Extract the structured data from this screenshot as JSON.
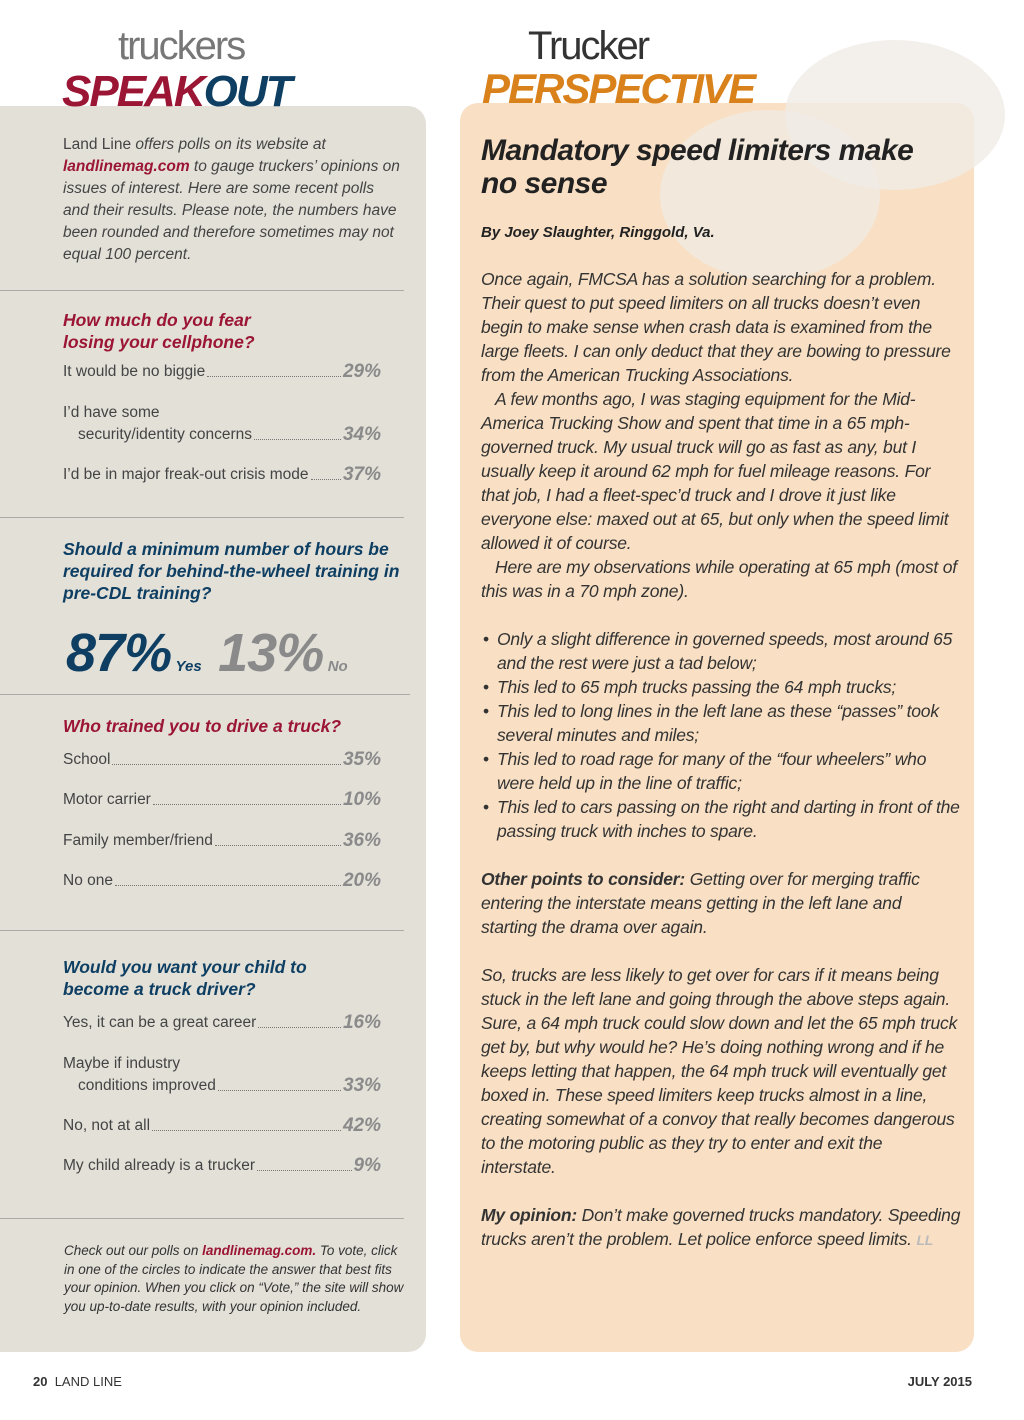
{
  "left": {
    "logo_small": "truckers",
    "logo_big_a": "SPEAK",
    "logo_big_b": "OUT",
    "intro_lead": "Land Line",
    "intro_a": " offers polls on its website at ",
    "intro_link": "landlinemag.com",
    "intro_b": " to gauge truckers’ opinions on issues of interest. Here are some recent polls and their results. Please note, the numbers have been rounded and therefore sometimes may not equal 100 percent.",
    "poll1": {
      "question": "How much do you fear losing your cellphone?",
      "answers": [
        {
          "label": "It would be no biggie",
          "pct": "29%"
        },
        {
          "label": "I’d have some",
          "label2": "security/identity concerns",
          "pct": "34%"
        },
        {
          "label": "I’d be in major freak-out crisis mode",
          "pct": "37%"
        }
      ]
    },
    "poll2": {
      "question": "Should a minimum number of hours be required for behind-the-wheel training in pre-CDL training?",
      "yes_pct": "87%",
      "yes": "Yes",
      "no_pct": "13%",
      "no": "No"
    },
    "poll3": {
      "question": "Who trained you to drive a truck?",
      "answers": [
        {
          "label": "School",
          "pct": "35%"
        },
        {
          "label": "Motor carrier",
          "pct": "10%"
        },
        {
          "label": "Family member/friend",
          "pct": "36%"
        },
        {
          "label": "No one",
          "pct": "20%"
        }
      ]
    },
    "poll4": {
      "question": "Would you want your child to become a truck driver?",
      "answers": [
        {
          "label": "Yes, it can be a great career",
          "pct": "16%"
        },
        {
          "label": "Maybe if industry",
          "label2": "conditions improved",
          "pct": "33%"
        },
        {
          "label": "No, not at all",
          "pct": "42%"
        },
        {
          "label": "My child already is a trucker",
          "pct": "9%"
        }
      ]
    },
    "outro_a": "Check out our polls on ",
    "outro_link": "landlinemag.com.",
    "outro_b": " To vote, click in one of the circles to indicate the answer that best fits your opinion. When you click on “Vote,” the site will show you up-to-date results, with your opinion included."
  },
  "right": {
    "logo_small": "Trucker",
    "logo_big": "PERSPECTIVE",
    "headline": "Mandatory speed limiters make no sense",
    "byline": "By Joey Slaughter, Ringgold, Va.",
    "p1": "Once again, FMCSA has a solution searching for a problem. Their quest to put speed limiters on all trucks doesn’t even begin to make sense when crash data is examined from the large fleets. I can only deduct that they are bowing to pressure from the American Trucking Associations.",
    "p2": "A few months ago, I was staging equipment for the Mid-America Trucking Show and spent that time in a 65 mph-governed truck. My usual truck will go as fast as any, but I usually keep it around 62 mph for fuel mileage reasons. For that job, I had a fleet-spec’d truck and I drove it just like everyone else: maxed out at 65, but only when the speed limit allowed it of course.",
    "p3": "Here are my observations while operating at 65 mph (most of this was in a 70 mph zone).",
    "bullets": [
      "Only a slight difference in governed speeds, most around 65 and the rest were just a tad below;",
      "This led to 65 mph trucks passing the 64 mph trucks;",
      "This led to long lines in the left lane as these “passes” took several minutes and miles;",
      "This led to road rage for many of the “four wheelers” who were held up in the line of traffic;",
      "This led to cars passing on the right and darting in front of the passing truck with inches to spare."
    ],
    "p4_lead": "Other points to consider:",
    "p4": " Getting over for merging traffic entering the interstate means getting in the left lane and starting the drama over again.",
    "p5": "So, trucks are less likely to get over for cars if it means being stuck in the left lane and going through the above steps again. Sure, a 64 mph truck could slow down and let the 65 mph truck get by, but why would he? He’s doing nothing wrong and if he keeps letting that happen, the 64 mph truck will eventually get boxed in. These speed limiters keep trucks almost in a line, creating somewhat of a convoy that really becomes dangerous to the motoring public as they try to enter and exit the interstate.",
    "p6_lead": "My opinion:",
    "p6": " Don’t make governed trucks mandatory. Speeding trucks aren’t the problem. Let police enforce speed limits.",
    "end_mark": "LL"
  },
  "footer": {
    "page": "20",
    "magazine": "LAND LINE",
    "date": "JULY 2015"
  },
  "colors": {
    "maroon": "#9b1535",
    "navy": "#0e3f63",
    "orange": "#d9821b",
    "panel_gray": "#e3e0d8",
    "panel_peach": "#f9e0c4"
  }
}
